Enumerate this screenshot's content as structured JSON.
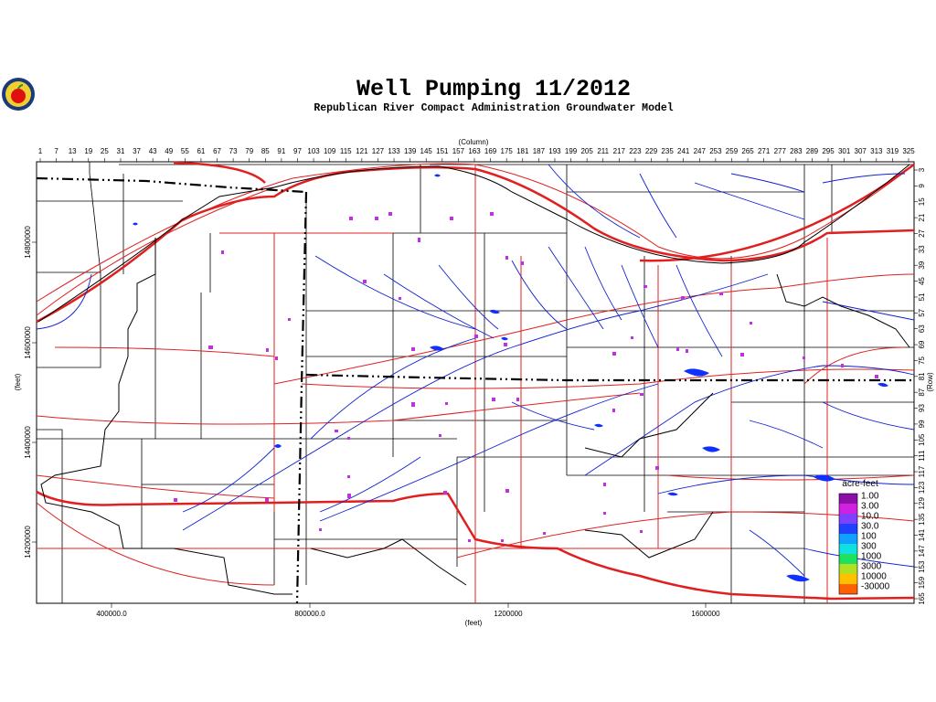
{
  "header": {
    "title": "Well Pumping 11/2012",
    "subtitle": "Republican River Compact Administration Groundwater Model"
  },
  "map": {
    "column_label": "(Column)",
    "columns": [
      "1",
      "7",
      "13",
      "19",
      "25",
      "31",
      "37",
      "43",
      "49",
      "55",
      "61",
      "67",
      "73",
      "79",
      "85",
      "91",
      "97",
      "103",
      "109",
      "115",
      "121",
      "127",
      "133",
      "139",
      "145",
      "151",
      "157",
      "163",
      "169",
      "175",
      "181",
      "187",
      "193",
      "199",
      "205",
      "211",
      "217",
      "223",
      "229",
      "235",
      "241",
      "247",
      "253",
      "259",
      "265",
      "271",
      "277",
      "283",
      "289",
      "295",
      "301",
      "307",
      "313",
      "319",
      "325"
    ],
    "row_label": "(Row)",
    "rows": [
      "3",
      "9",
      "15",
      "21",
      "27",
      "33",
      "39",
      "45",
      "51",
      "57",
      "63",
      "69",
      "75",
      "81",
      "87",
      "93",
      "99",
      "105",
      "111",
      "117",
      "123",
      "129",
      "135",
      "141",
      "147",
      "153",
      "159",
      "165"
    ],
    "x_label": "(feet)",
    "x_ticks": [
      "400000.0",
      "800000.0",
      "1200000",
      "1600000"
    ],
    "y_label": "(feet)",
    "y_ticks": [
      "14800000",
      "14600000",
      "14400000",
      "14200000"
    ]
  },
  "legend": {
    "title": "acre-feet",
    "items": [
      {
        "label": "1.00",
        "color": "#8a10a8"
      },
      {
        "label": "3.00",
        "color": "#d020e0"
      },
      {
        "label": "10.0",
        "color": "#8040ff"
      },
      {
        "label": "30.0",
        "color": "#2040ff"
      },
      {
        "label": "100",
        "color": "#10a0ff"
      },
      {
        "label": "300",
        "color": "#10e0e0"
      },
      {
        "label": "1000",
        "color": "#20e060"
      },
      {
        "label": "3000",
        "color": "#b0e020"
      },
      {
        "label": "10000",
        "color": "#ffc000"
      },
      {
        "label": "-30000",
        "color": "#ff6000"
      }
    ]
  }
}
